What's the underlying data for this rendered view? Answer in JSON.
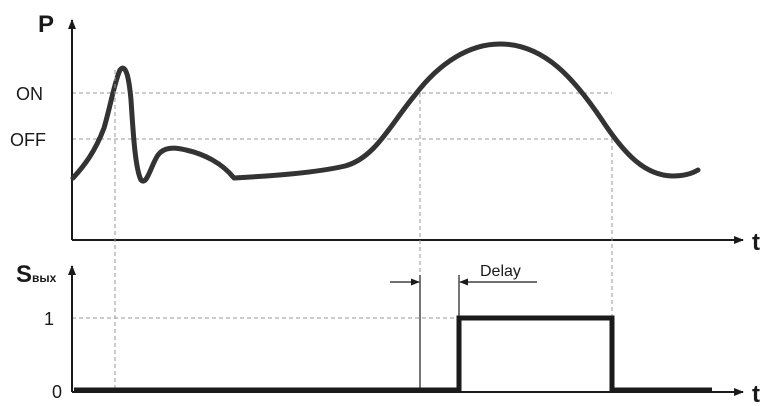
{
  "top_chart": {
    "y_label": "P",
    "x_label": "t",
    "tick_on": "ON",
    "tick_off": "OFF"
  },
  "bottom_chart": {
    "y_label_main": "S",
    "y_label_sub": "вых",
    "x_label": "t",
    "tick_one": "1",
    "tick_zero": "0",
    "delay_label": "Delay"
  },
  "colors": {
    "ink": "#1a1a1a",
    "curve": "#333333",
    "guide": "#9a9a9a"
  }
}
